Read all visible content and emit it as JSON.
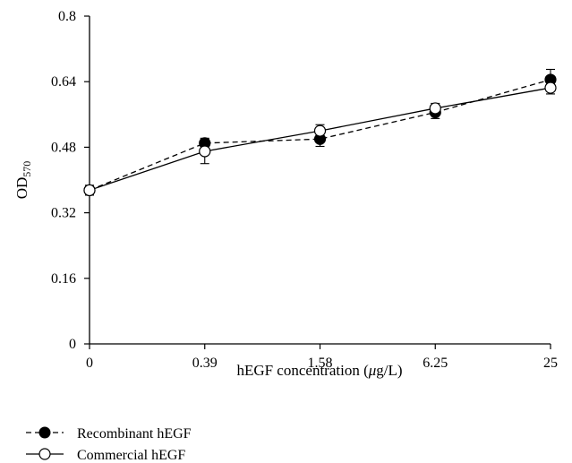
{
  "chart_data": {
    "type": "line",
    "categories": [
      "0",
      "0.39",
      "1.58",
      "6.25",
      "25"
    ],
    "xlabel": "hEGF concentration (",
    "xlabel_unit_mu": "μ",
    "xlabel_unit_rest": "g/L)",
    "ylabel_main": "OD",
    "ylabel_sub": "570",
    "ylim": [
      0,
      0.8
    ],
    "yticks": [
      "0",
      "0.16",
      "0.32",
      "0.48",
      "0.64",
      "0.8"
    ],
    "ytick_values": [
      0,
      0.16,
      0.32,
      0.48,
      0.64,
      0.8
    ],
    "grid": false,
    "legend_position": "bottom-left",
    "series": [
      {
        "name": "Recombinant hEGF",
        "values": [
          0.375,
          0.49,
          0.5,
          0.565,
          0.645
        ],
        "errors": [
          0.012,
          0.012,
          0.018,
          0.015,
          0.025
        ],
        "marker": "filled-circle",
        "line_style": "dashed",
        "color": "#000000"
      },
      {
        "name": "Commercial hEGF",
        "values": [
          0.375,
          0.47,
          0.52,
          0.575,
          0.625
        ],
        "errors": [
          0.012,
          0.03,
          0.015,
          0.012,
          0.015
        ],
        "marker": "open-circle",
        "line_style": "solid",
        "color": "#000000"
      }
    ]
  }
}
